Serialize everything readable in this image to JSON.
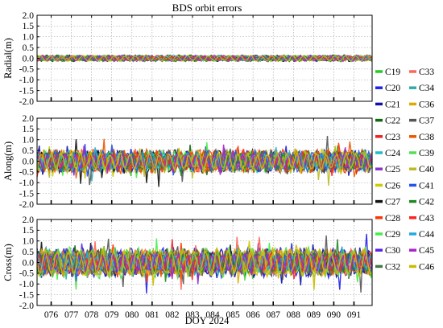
{
  "chart_data": {
    "type": "line",
    "title": "BDS orbit errors",
    "xlabel": "DOY 2024",
    "x_ticks": [
      "076",
      "077",
      "078",
      "079",
      "080",
      "081",
      "082",
      "083",
      "084",
      "085",
      "086",
      "087",
      "088",
      "089",
      "090",
      "091"
    ],
    "xlim": [
      75.3,
      91.9
    ],
    "grid": true,
    "legend_position": "right",
    "subplots": [
      {
        "ylabel": "Radial(m)",
        "ylim": [
          -2.0,
          2.0
        ],
        "yticks": [
          "2.0",
          "1.5",
          "1.0",
          "0.5",
          "0.0",
          "-0.5",
          "-1.0",
          "-1.5",
          "-2.0"
        ],
        "amplitude": 0.1
      },
      {
        "ylabel": "Along(m)",
        "ylim": [
          -2.0,
          2.0
        ],
        "yticks": [
          "2.0",
          "1.5",
          "1.0",
          "0.5",
          "0.0",
          "-0.5",
          "-1.0",
          "-1.5",
          "-2.0"
        ],
        "amplitude": 0.35
      },
      {
        "ylabel": "Cross(m)",
        "ylim": [
          -2.0,
          2.0
        ],
        "yticks": [
          "2.0",
          "1.5",
          "1.0",
          "0.5",
          "0.0",
          "-0.5",
          "-1.0",
          "-1.5",
          "-2.0"
        ],
        "amplitude": 0.45
      }
    ],
    "series": [
      {
        "name": "C19",
        "color": "#22cc22"
      },
      {
        "name": "C20",
        "color": "#2222ee"
      },
      {
        "name": "C21",
        "color": "#1111aa"
      },
      {
        "name": "C22",
        "color": "#116611"
      },
      {
        "name": "C23",
        "color": "#ee2222"
      },
      {
        "name": "C24",
        "color": "#22bbcc"
      },
      {
        "name": "C25",
        "color": "#8833cc"
      },
      {
        "name": "C26",
        "color": "#cccc00"
      },
      {
        "name": "C27",
        "color": "#111111"
      },
      {
        "name": "C28",
        "color": "#ff3300"
      },
      {
        "name": "C29",
        "color": "#44ee44"
      },
      {
        "name": "C30",
        "color": "#5522ee"
      },
      {
        "name": "C32",
        "color": "#447744"
      },
      {
        "name": "C33",
        "color": "#ff6655"
      },
      {
        "name": "C34",
        "color": "#33aaaa"
      },
      {
        "name": "C36",
        "color": "#ddaa00"
      },
      {
        "name": "C37",
        "color": "#555555"
      },
      {
        "name": "C38",
        "color": "#ee5500"
      },
      {
        "name": "C39",
        "color": "#55dd55"
      },
      {
        "name": "C40",
        "color": "#bbbb22"
      },
      {
        "name": "C41",
        "color": "#2255ee"
      },
      {
        "name": "C42",
        "color": "#228822"
      },
      {
        "name": "C43",
        "color": "#ff2222"
      },
      {
        "name": "C44",
        "color": "#22aadd"
      },
      {
        "name": "C45",
        "color": "#aa22cc"
      },
      {
        "name": "C46",
        "color": "#ccbb00"
      }
    ]
  }
}
